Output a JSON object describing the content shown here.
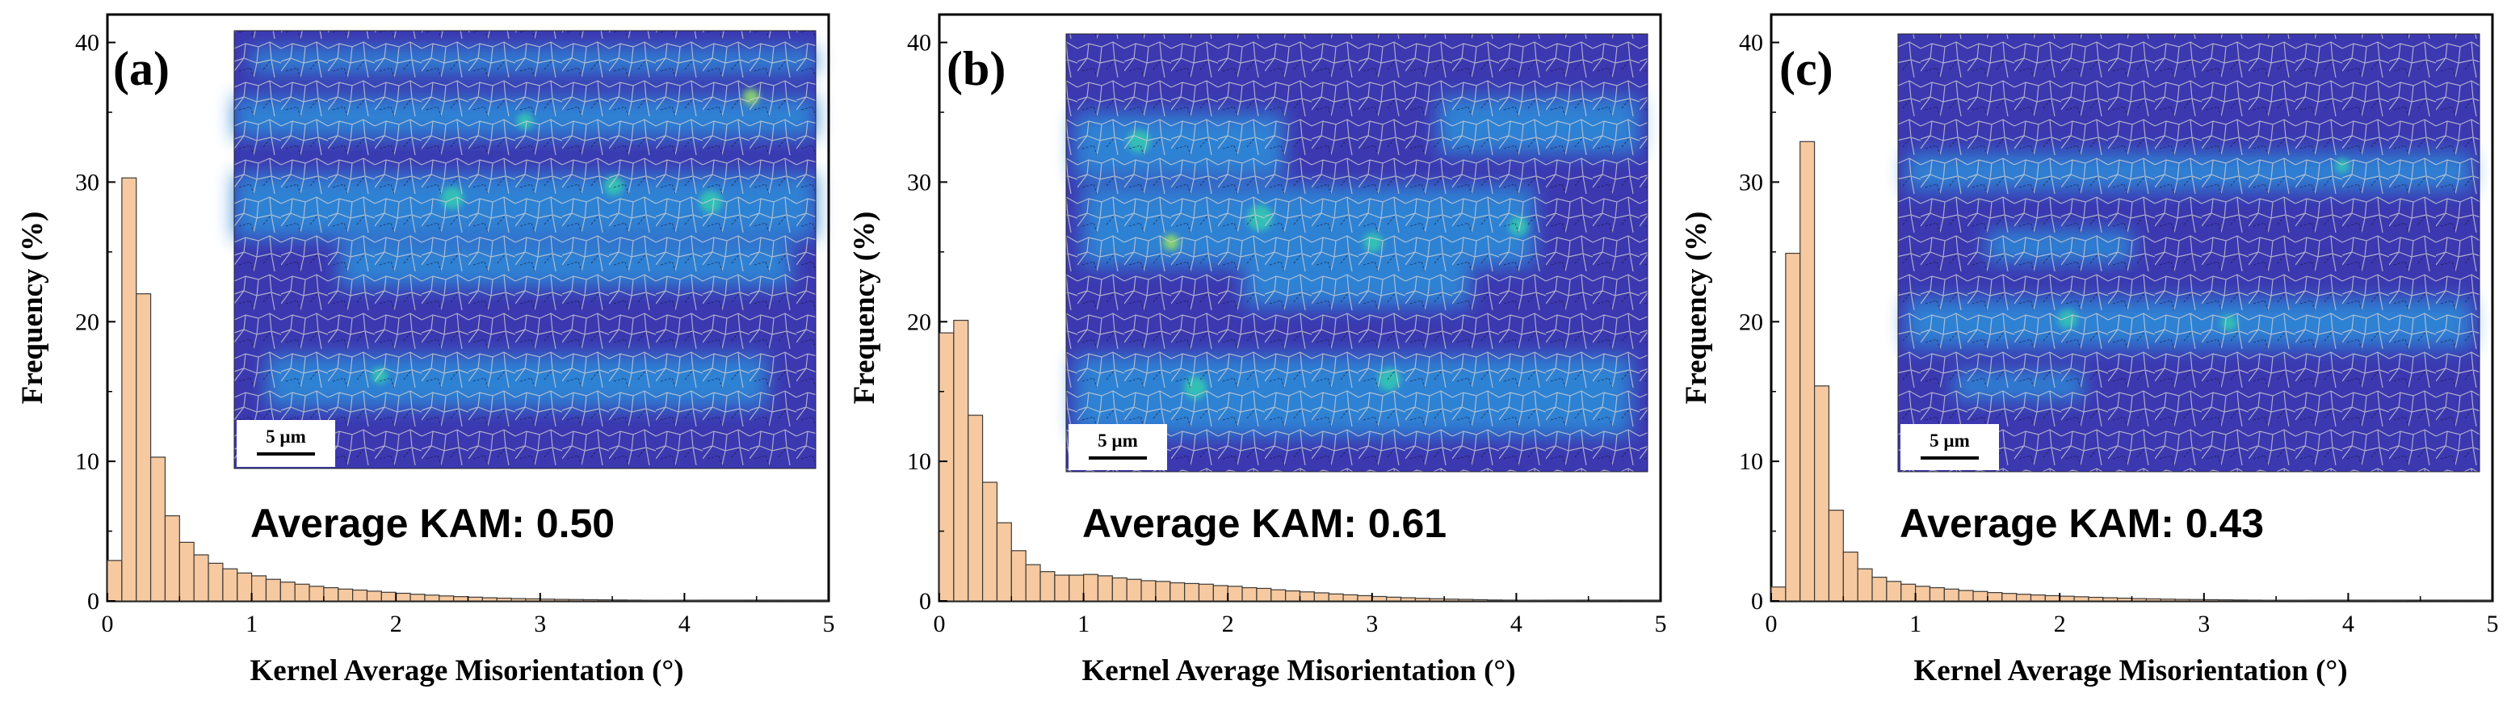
{
  "chart_data": [
    {
      "type": "bar",
      "panel_label": "(a)",
      "xlabel": "Kernel Average Misorientation (°)",
      "ylabel": "Frequency (%)",
      "xlim": [
        0,
        5
      ],
      "ylim": [
        0,
        42
      ],
      "xticks": [
        0,
        1,
        2,
        3,
        4,
        5
      ],
      "yticks": [
        0,
        10,
        20,
        30,
        40
      ],
      "bin_width": 0.1,
      "x": [
        0.05,
        0.15,
        0.25,
        0.35,
        0.45,
        0.55,
        0.65,
        0.75,
        0.85,
        0.95,
        1.05,
        1.15,
        1.25,
        1.35,
        1.45,
        1.55,
        1.65,
        1.75,
        1.85,
        1.95,
        2.05,
        2.15,
        2.25,
        2.35,
        2.45,
        2.55,
        2.65,
        2.75,
        2.85,
        2.95,
        3.05,
        3.15,
        3.25,
        3.35,
        3.45,
        3.55,
        3.65,
        3.75,
        3.85,
        3.95,
        4.05,
        4.15,
        4.25,
        4.35,
        4.45,
        4.55,
        4.65,
        4.75,
        4.85,
        4.95
      ],
      "values": [
        2.9,
        30.3,
        22.0,
        10.3,
        6.1,
        4.2,
        3.3,
        2.7,
        2.3,
        2.0,
        1.8,
        1.55,
        1.35,
        1.2,
        1.05,
        0.95,
        0.85,
        0.78,
        0.7,
        0.62,
        0.55,
        0.48,
        0.42,
        0.36,
        0.31,
        0.27,
        0.23,
        0.2,
        0.17,
        0.15,
        0.13,
        0.11,
        0.1,
        0.09,
        0.08,
        0.07,
        0.06,
        0.05,
        0.05,
        0.04,
        0.04,
        0.03,
        0.03,
        0.03,
        0.02,
        0.02,
        0.02,
        0.02,
        0.01,
        0.01
      ],
      "annotation": "Average KAM: 0.50",
      "inset_scale_bar": "5 µm"
    },
    {
      "type": "bar",
      "panel_label": "(b)",
      "xlabel": "Kernel Average Misorientation (°)",
      "ylabel": "Frequency (%)",
      "xlim": [
        0,
        5
      ],
      "ylim": [
        0,
        42
      ],
      "xticks": [
        0,
        1,
        2,
        3,
        4,
        5
      ],
      "yticks": [
        0,
        10,
        20,
        30,
        40
      ],
      "bin_width": 0.1,
      "x": [
        0.05,
        0.15,
        0.25,
        0.35,
        0.45,
        0.55,
        0.65,
        0.75,
        0.85,
        0.95,
        1.05,
        1.15,
        1.25,
        1.35,
        1.45,
        1.55,
        1.65,
        1.75,
        1.85,
        1.95,
        2.05,
        2.15,
        2.25,
        2.35,
        2.45,
        2.55,
        2.65,
        2.75,
        2.85,
        2.95,
        3.05,
        3.15,
        3.25,
        3.35,
        3.45,
        3.55,
        3.65,
        3.75,
        3.85,
        3.95,
        4.05,
        4.15,
        4.25,
        4.35,
        4.45,
        4.55,
        4.65,
        4.75,
        4.85,
        4.95
      ],
      "values": [
        19.2,
        20.1,
        13.3,
        8.5,
        5.6,
        3.6,
        2.6,
        2.1,
        1.85,
        1.85,
        1.9,
        1.8,
        1.65,
        1.55,
        1.45,
        1.4,
        1.3,
        1.25,
        1.2,
        1.1,
        1.05,
        0.95,
        0.9,
        0.8,
        0.72,
        0.65,
        0.58,
        0.5,
        0.44,
        0.38,
        0.32,
        0.27,
        0.23,
        0.19,
        0.16,
        0.13,
        0.11,
        0.09,
        0.07,
        0.06,
        0.05,
        0.04,
        0.03,
        0.03,
        0.02,
        0.02,
        0.02,
        0.01,
        0.01,
        0.01
      ],
      "annotation": "Average KAM: 0.61",
      "inset_scale_bar": "5 µm"
    },
    {
      "type": "bar",
      "panel_label": "(c)",
      "xlabel": "Kernel Average Misorientation (°)",
      "ylabel": "Frequency (%)",
      "xlim": [
        0,
        5
      ],
      "ylim": [
        0,
        42
      ],
      "xticks": [
        0,
        1,
        2,
        3,
        4,
        5
      ],
      "yticks": [
        0,
        10,
        20,
        30,
        40
      ],
      "bin_width": 0.1,
      "x": [
        0.05,
        0.15,
        0.25,
        0.35,
        0.45,
        0.55,
        0.65,
        0.75,
        0.85,
        0.95,
        1.05,
        1.15,
        1.25,
        1.35,
        1.45,
        1.55,
        1.65,
        1.75,
        1.85,
        1.95,
        2.05,
        2.15,
        2.25,
        2.35,
        2.45,
        2.55,
        2.65,
        2.75,
        2.85,
        2.95,
        3.05,
        3.15,
        3.25,
        3.35,
        3.45,
        3.55,
        3.65,
        3.75,
        3.85,
        3.95,
        4.05,
        4.15,
        4.25,
        4.35,
        4.45,
        4.55,
        4.65,
        4.75,
        4.85,
        4.95
      ],
      "values": [
        1.0,
        24.9,
        32.9,
        15.4,
        6.5,
        3.5,
        2.3,
        1.7,
        1.4,
        1.2,
        1.05,
        0.95,
        0.85,
        0.75,
        0.68,
        0.6,
        0.54,
        0.48,
        0.43,
        0.38,
        0.34,
        0.3,
        0.26,
        0.23,
        0.2,
        0.17,
        0.15,
        0.13,
        0.11,
        0.1,
        0.09,
        0.08,
        0.07,
        0.06,
        0.05,
        0.04,
        0.04,
        0.03,
        0.03,
        0.03,
        0.02,
        0.02,
        0.02,
        0.02,
        0.01,
        0.01,
        0.01,
        0.01,
        0.01,
        0.01
      ],
      "annotation": "Average KAM: 0.43",
      "inset_scale_bar": "5 µm"
    }
  ],
  "colors": {
    "bar_fill": "#f6c9a0",
    "bar_edge": "#3a3a3a",
    "inset_background": "#3c38b0",
    "inset_band": "#2f86d6",
    "inset_hot": "#35c6b2",
    "inset_grain_boundary": "#c8c8c8"
  }
}
